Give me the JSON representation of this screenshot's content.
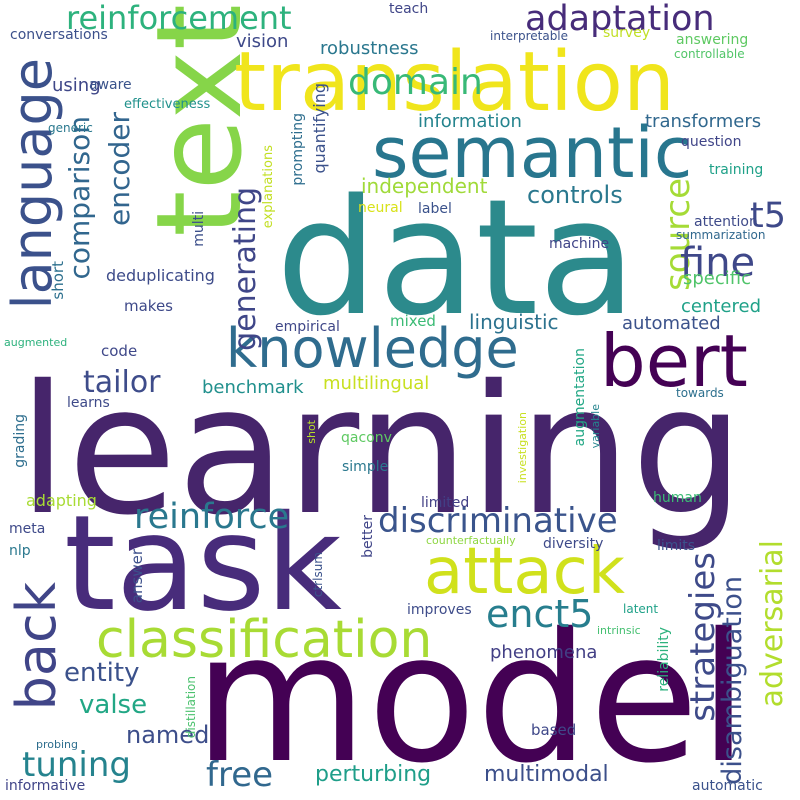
{
  "words": [
    {
      "text": "learning",
      "color": "#46256b"
    },
    {
      "text": "model",
      "color": "#440154"
    },
    {
      "text": "data",
      "color": "#2c8a8c"
    },
    {
      "text": "task",
      "color": "#482c7b"
    },
    {
      "text": "text",
      "color": "#86d549"
    },
    {
      "text": "translation",
      "color": "#f0e51c"
    },
    {
      "text": "semantic",
      "color": "#28768e"
    },
    {
      "text": "attack",
      "color": "#d0e11c"
    },
    {
      "text": "bert",
      "color": "#440154"
    },
    {
      "text": "knowledge",
      "color": "#2f6c8e"
    },
    {
      "text": "language",
      "color": "#3b518b"
    },
    {
      "text": "classification",
      "color": "#a8db34"
    },
    {
      "text": "back",
      "color": "#404588"
    },
    {
      "text": "reinforcement",
      "color": "#2db27d"
    },
    {
      "text": "adaptation",
      "color": "#472c7a"
    },
    {
      "text": "domain",
      "color": "#38b977"
    },
    {
      "text": "discriminative",
      "color": "#3a548c"
    },
    {
      "text": "reinforce",
      "color": "#2a788e"
    },
    {
      "text": "adversarial",
      "color": "#b2dd2d"
    },
    {
      "text": "strategies",
      "color": "#3e4a89"
    },
    {
      "text": "enct5",
      "color": "#277e8e"
    },
    {
      "text": "source",
      "color": "#a5db36"
    },
    {
      "text": "fine",
      "color": "#3f4889"
    },
    {
      "text": "t5",
      "color": "#3e4989"
    },
    {
      "text": "comparison",
      "color": "#31678e"
    },
    {
      "text": "encoder",
      "color": "#32658e"
    },
    {
      "text": "generating",
      "color": "#3f4688"
    },
    {
      "text": "free",
      "color": "#31688e"
    },
    {
      "text": "tuning",
      "color": "#25838e"
    },
    {
      "text": "tailor",
      "color": "#3e4c8a"
    },
    {
      "text": "disambiguation",
      "color": "#3c508b"
    },
    {
      "text": "controls",
      "color": "#2a788e"
    },
    {
      "text": "perturbing",
      "color": "#1f9e89"
    },
    {
      "text": "multimodal",
      "color": "#3c4f8a"
    },
    {
      "text": "valse",
      "color": "#22a785"
    },
    {
      "text": "entity",
      "color": "#3b518b"
    },
    {
      "text": "named",
      "color": "#3d4e8a"
    },
    {
      "text": "linguistic",
      "color": "#2c728e"
    },
    {
      "text": "independent",
      "color": "#a0da39"
    },
    {
      "text": "automated",
      "color": "#3b528b"
    },
    {
      "text": "centered",
      "color": "#1fa188"
    },
    {
      "text": "specific",
      "color": "#50c46a"
    },
    {
      "text": "benchmark",
      "color": "#21908d"
    },
    {
      "text": "multilingual",
      "color": "#c8e020"
    },
    {
      "text": "phenomena",
      "color": "#423f85"
    },
    {
      "text": "transformers",
      "color": "#31688e"
    },
    {
      "text": "robustness",
      "color": "#2a778e"
    },
    {
      "text": "vision",
      "color": "#3e4989"
    },
    {
      "text": "information",
      "color": "#25848e"
    },
    {
      "text": "conversations",
      "color": "#3c508b"
    },
    {
      "text": "using",
      "color": "#3f4788"
    },
    {
      "text": "aware",
      "color": "#3a538b"
    },
    {
      "text": "effectiveness",
      "color": "#21918c"
    },
    {
      "text": "generic",
      "color": "#2a788e"
    },
    {
      "text": "teach",
      "color": "#404688"
    },
    {
      "text": "interpretable",
      "color": "#3b528b"
    },
    {
      "text": "survey",
      "color": "#c0df25"
    },
    {
      "text": "answering",
      "color": "#5ec962"
    },
    {
      "text": "controllable",
      "color": "#52c569"
    },
    {
      "text": "question",
      "color": "#404588"
    },
    {
      "text": "training",
      "color": "#1fa188"
    },
    {
      "text": "attention",
      "color": "#3e4a89"
    },
    {
      "text": "summarization",
      "color": "#31688e"
    },
    {
      "text": "quantifying",
      "color": "#3b518b"
    },
    {
      "text": "prompting",
      "color": "#2e6e8e"
    },
    {
      "text": "explanations",
      "color": "#c2df23"
    },
    {
      "text": "multi",
      "color": "#3c4f8a"
    },
    {
      "text": "neural",
      "color": "#d8e219"
    },
    {
      "text": "label",
      "color": "#3b528b"
    },
    {
      "text": "machine",
      "color": "#404588"
    },
    {
      "text": "deduplicating",
      "color": "#3e4c8a"
    },
    {
      "text": "makes",
      "color": "#3e4989"
    },
    {
      "text": "short",
      "color": "#2d708e"
    },
    {
      "text": "empirical",
      "color": "#3f4788"
    },
    {
      "text": "mixed",
      "color": "#3bbb75"
    },
    {
      "text": "code",
      "color": "#3f4889"
    },
    {
      "text": "augmented",
      "color": "#2db27d"
    },
    {
      "text": "learns",
      "color": "#3e4a89"
    },
    {
      "text": "grading",
      "color": "#2e6e8e"
    },
    {
      "text": "shot",
      "color": "#b8de29"
    },
    {
      "text": "qaconv",
      "color": "#5ec962"
    },
    {
      "text": "simple",
      "color": "#2a788e"
    },
    {
      "text": "investigation",
      "color": "#c8e020"
    },
    {
      "text": "augmentation",
      "color": "#22a785"
    },
    {
      "text": "variable",
      "color": "#25848e"
    },
    {
      "text": "towards",
      "color": "#2d708e"
    },
    {
      "text": "adapting",
      "color": "#a8db34"
    },
    {
      "text": "limited",
      "color": "#424086"
    },
    {
      "text": "better",
      "color": "#404588"
    },
    {
      "text": "human",
      "color": "#3bbb75"
    },
    {
      "text": "meta",
      "color": "#3e4989"
    },
    {
      "text": "nlp",
      "color": "#2a788e"
    },
    {
      "text": "answer",
      "color": "#3c508b"
    },
    {
      "text": "ctrlsum",
      "color": "#3b528b"
    },
    {
      "text": "counterfactually",
      "color": "#8fd744"
    },
    {
      "text": "diversity",
      "color": "#3e4a89"
    },
    {
      "text": "limits",
      "color": "#3b528b"
    },
    {
      "text": "improves",
      "color": "#3e4c8a"
    },
    {
      "text": "latent",
      "color": "#1fa188"
    },
    {
      "text": "intrinsic",
      "color": "#44bf70"
    },
    {
      "text": "reliability",
      "color": "#2db27d"
    },
    {
      "text": "based",
      "color": "#3f4889"
    },
    {
      "text": "distillation",
      "color": "#4ac16d"
    },
    {
      "text": "probing",
      "color": "#2e6e8e"
    },
    {
      "text": "informative",
      "color": "#404588"
    },
    {
      "text": "automatic",
      "color": "#3b528b"
    }
  ]
}
